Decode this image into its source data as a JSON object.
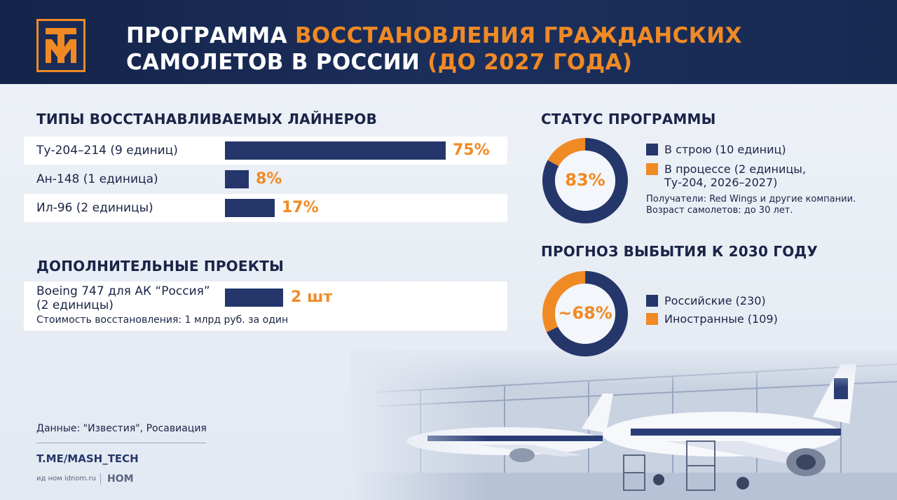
{
  "header": {
    "title_line1_a": "ПРОГРАММА ",
    "title_line1_b": "ВОССТАНОВЛЕНИЯ ГРАЖДАНСКИХ",
    "title_line2_a": "САМОЛЕТОВ В РОССИИ ",
    "title_line2_b": "(ДО 2027 ГОДА)",
    "logo": "mash-logo-icon"
  },
  "colors": {
    "navy": "#25376a",
    "orange": "#f08a24",
    "header_bg": "#14244a"
  },
  "chart_data": [
    {
      "type": "bar",
      "title": "ТИПЫ ВОССТАНАВЛИВАЕМЫХ ЛАЙНЕРОВ",
      "categories": [
        "Ту-204–214 (9 единиц)",
        "Ан-148 (1 единица)",
        "Ил-96 (2 единицы)"
      ],
      "values": [
        75,
        8,
        17
      ],
      "value_labels": [
        "75%",
        "8%",
        "17%"
      ],
      "xlim": [
        0,
        100
      ]
    },
    {
      "type": "bar",
      "title": "ДОПОЛНИТЕЛЬНЫЕ ПРОЕКТЫ",
      "categories": [
        "Boeing 747 для АК “Россия” (2 единицы)"
      ],
      "category_line1": "Boeing 747 для АК “Россия”",
      "category_line2": "(2 единицы)",
      "values": [
        2
      ],
      "value_labels": [
        "2 шт"
      ],
      "note": "Стоимость восстановления: 1 млрд руб. за один"
    },
    {
      "type": "pie",
      "title": "СТАТУС ПРОГРАММЫ",
      "center_label": "83%",
      "slices": [
        {
          "name": "В строю (10 единиц)",
          "value": 83,
          "color": "#25376a"
        },
        {
          "name": "В процессе (2 единицы, Ту-204, 2026–2027)",
          "value": 17,
          "color": "#f08a24"
        }
      ],
      "legend": [
        "В строю (10 единиц)",
        "В процессе (2 единицы,",
        "Ту-204, 2026–2027)"
      ],
      "notes": [
        "Получатели: Red Wings и другие компании.",
        "Возраст самолетов: до 30 лет."
      ]
    },
    {
      "type": "pie",
      "title": "ПРОГНОЗ ВЫБЫТИЯ К 2030 ГОДУ",
      "center_label": "~68%",
      "slices": [
        {
          "name": "Российские (230)",
          "value": 230,
          "color": "#25376a"
        },
        {
          "name": "Иностранные (109)",
          "value": 109,
          "color": "#f08a24"
        }
      ],
      "legend": [
        "Российские (230)",
        "Иностранные (109)"
      ]
    }
  ],
  "footer": {
    "source": "Данные: \"Известия\", Росавиация",
    "channel": "T.ME/MASH_TECH",
    "id_text": "ид ном idnom.ru",
    "brand": "НОМ"
  }
}
